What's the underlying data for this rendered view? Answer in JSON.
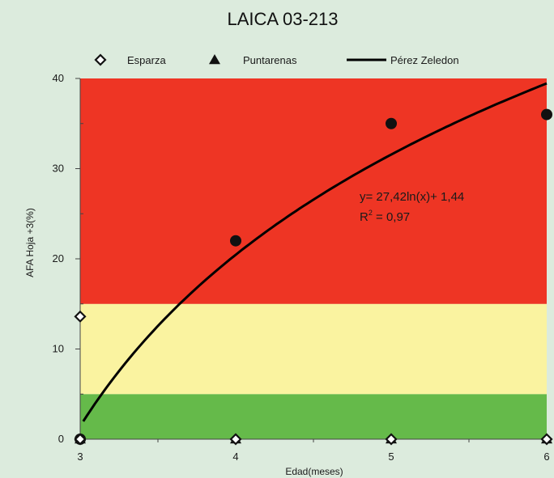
{
  "chart_data": {
    "type": "scatter",
    "title": "LAICA 03-213",
    "xlabel": "Edad(meses)",
    "ylabel": "AFA Hoja +3(%)",
    "xlim": [
      3,
      6
    ],
    "ylim": [
      0,
      40
    ],
    "x_ticks": [
      3,
      4,
      5,
      6
    ],
    "y_ticks": [
      0,
      10,
      20,
      30,
      40
    ],
    "x_tick_labels": [
      "3",
      "4",
      "5",
      "6"
    ],
    "y_tick_labels": [
      "0",
      "10",
      "20",
      "30",
      "40"
    ],
    "legend_position": "top",
    "bands": [
      {
        "from": 0,
        "to": 5,
        "color": "#65ba4a"
      },
      {
        "from": 5,
        "to": 15,
        "color": "#faf3a0"
      },
      {
        "from": 15,
        "to": 40,
        "color": "#ee3524"
      }
    ],
    "series": [
      {
        "name": "Esparza",
        "marker": "diamond-open",
        "points": [
          [
            3,
            13.6
          ],
          [
            3,
            0
          ],
          [
            4,
            0
          ],
          [
            5,
            0
          ],
          [
            6,
            0
          ]
        ]
      },
      {
        "name": "Puntarenas",
        "marker": "triangle",
        "points": [
          [
            3,
            0
          ],
          [
            4,
            0
          ],
          [
            5,
            0
          ],
          [
            6,
            0
          ]
        ]
      },
      {
        "name": "Pérez Zeledon",
        "marker": "circle",
        "points": [
          [
            3,
            0
          ],
          [
            4,
            22
          ],
          [
            5,
            35
          ],
          [
            6,
            36
          ]
        ]
      }
    ],
    "trendline": {
      "series": "Pérez Zeledon",
      "type": "log",
      "a": 27.42,
      "b": 1.44,
      "x_offset": 2,
      "equation_text": "y= 27,42ln(x)+ 1,44",
      "r2_prefix": "R",
      "r2_superscript": "2",
      "r2_suffix": " = 0,97"
    },
    "colors": {
      "background": "#dcebdd",
      "marker": "#111111",
      "line": "#000000"
    }
  }
}
